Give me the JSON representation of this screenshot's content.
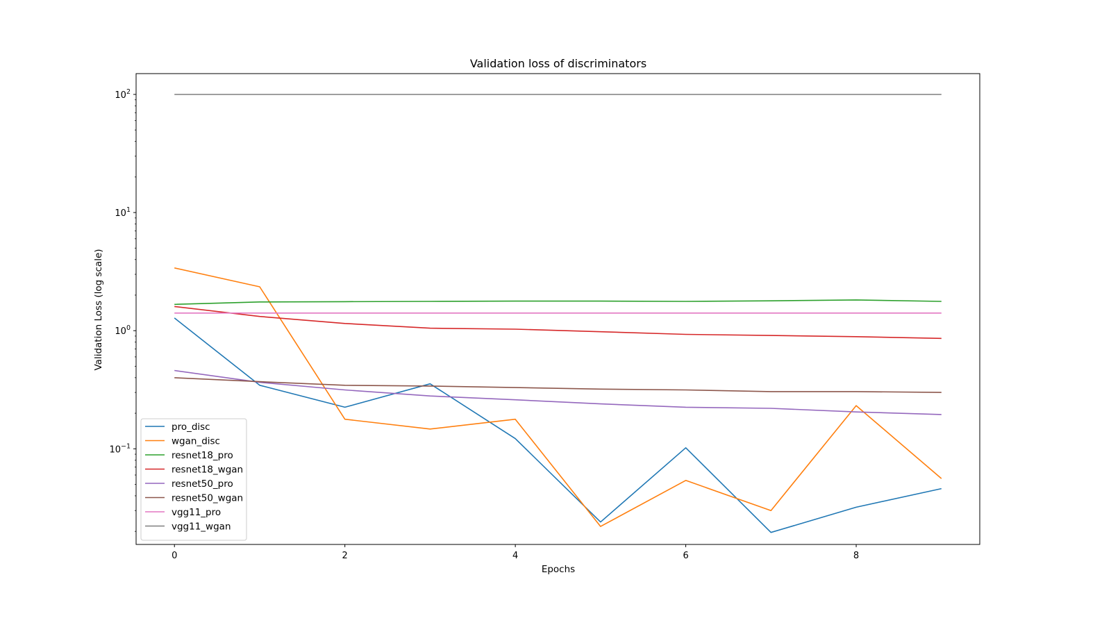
{
  "chart_data": {
    "type": "line",
    "title": "Validation loss of discriminators",
    "xlabel": "Epochs",
    "ylabel": "Validation Loss (log scale)",
    "yscale": "log",
    "xlim": [
      -0.45,
      9.45
    ],
    "ylim": [
      0.0155,
      150
    ],
    "x_ticks": [
      0,
      2,
      4,
      6,
      8
    ],
    "y_ticks": [
      {
        "value": 0.1,
        "base": "10",
        "exp": "−1"
      },
      {
        "value": 1,
        "base": "10",
        "exp": "0"
      },
      {
        "value": 10,
        "base": "10",
        "exp": "1"
      },
      {
        "value": 100,
        "base": "10",
        "exp": "2"
      }
    ],
    "grid": false,
    "legend_position": "lower-left",
    "x": [
      0,
      1,
      2,
      3,
      4,
      5,
      6,
      7,
      8,
      9
    ],
    "series": [
      {
        "name": "pro_disc",
        "color": "#1f77b4",
        "values": [
          1.28,
          0.345,
          0.225,
          0.355,
          0.122,
          0.024,
          0.102,
          0.0196,
          0.032,
          0.046
        ]
      },
      {
        "name": "wgan_disc",
        "color": "#ff7f0e",
        "values": [
          3.4,
          2.35,
          0.178,
          0.147,
          0.178,
          0.022,
          0.054,
          0.03,
          0.232,
          0.056
        ]
      },
      {
        "name": "resnet18_pro",
        "color": "#2ca02c",
        "values": [
          1.67,
          1.75,
          1.76,
          1.77,
          1.78,
          1.78,
          1.77,
          1.79,
          1.82,
          1.77
        ]
      },
      {
        "name": "resnet18_wgan",
        "color": "#d62728",
        "values": [
          1.6,
          1.32,
          1.15,
          1.05,
          1.03,
          0.98,
          0.93,
          0.91,
          0.89,
          0.86
        ]
      },
      {
        "name": "resnet50_pro",
        "color": "#9467bd",
        "values": [
          0.46,
          0.365,
          0.315,
          0.28,
          0.26,
          0.24,
          0.225,
          0.22,
          0.205,
          0.195
        ]
      },
      {
        "name": "resnet50_wgan",
        "color": "#8c564b",
        "values": [
          0.4,
          0.37,
          0.345,
          0.34,
          0.33,
          0.32,
          0.315,
          0.305,
          0.305,
          0.3
        ]
      },
      {
        "name": "vgg11_pro",
        "color": "#e377c2",
        "values": [
          1.41,
          1.41,
          1.41,
          1.41,
          1.41,
          1.41,
          1.41,
          1.41,
          1.41,
          1.41
        ]
      },
      {
        "name": "vgg11_wgan",
        "color": "#7f7f7f",
        "values": [
          100,
          100,
          100,
          100,
          100,
          100,
          100,
          100,
          100,
          100
        ]
      }
    ]
  }
}
